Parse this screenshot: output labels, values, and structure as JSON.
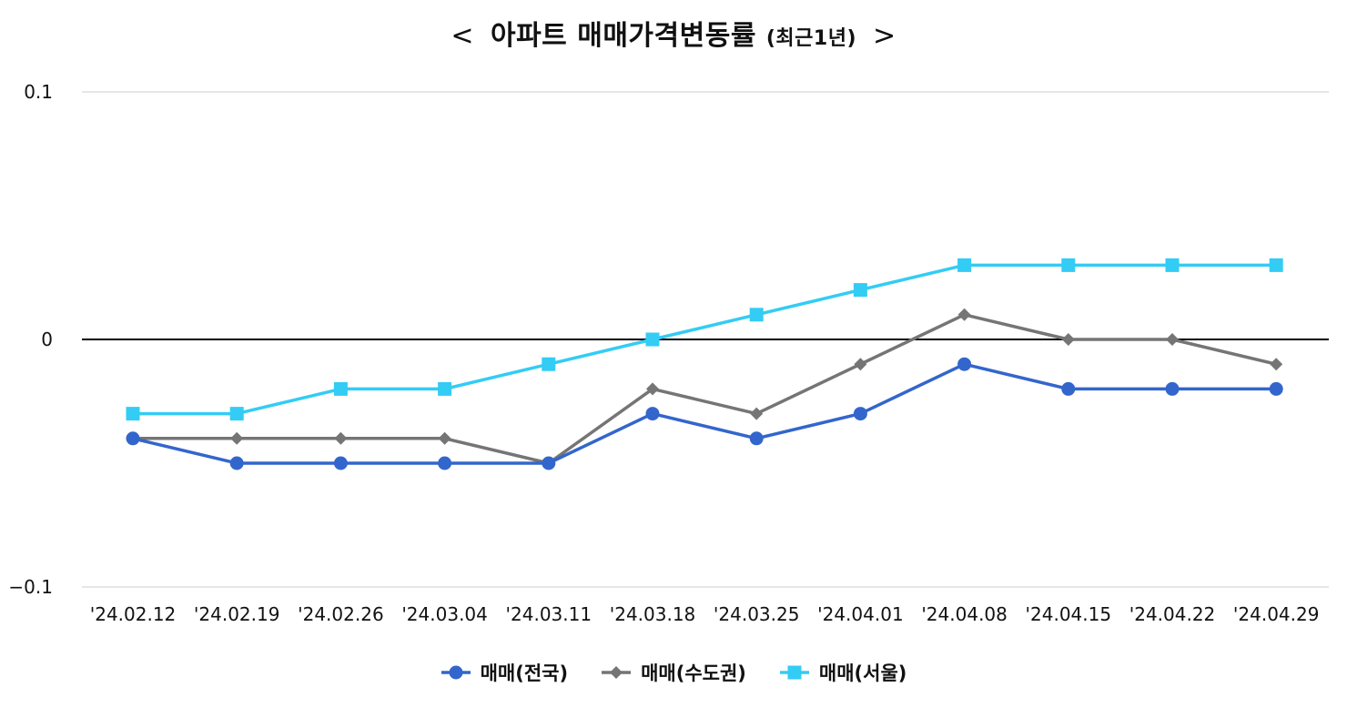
{
  "title": {
    "left_arrow": "<",
    "main": "아파트 매매가격변동률",
    "sub": "(최근1년)",
    "right_arrow": ">"
  },
  "chart_data": {
    "type": "line",
    "title": "아파트 매매가격변동률 (최근1년)",
    "xlabel": "",
    "ylabel": "",
    "categories": [
      "'24.02.12",
      "'24.02.19",
      "'24.02.26",
      "'24.03.04",
      "'24.03.11",
      "'24.03.18",
      "'24.03.25",
      "'24.04.01",
      "'24.04.08",
      "'24.04.15",
      "'24.04.22",
      "'24.04.29"
    ],
    "ylim": [
      -0.1,
      0.1
    ],
    "yticks": [
      0.1,
      0,
      -0.1
    ],
    "ytick_labels": [
      "0.1",
      "0",
      "−0.1"
    ],
    "grid": true,
    "legend_position": "bottom",
    "series": [
      {
        "name": "매매(전국)",
        "color": "#3366cc",
        "marker": "circle",
        "values": [
          -0.04,
          -0.05,
          -0.05,
          -0.05,
          -0.05,
          -0.03,
          -0.04,
          -0.03,
          -0.01,
          -0.02,
          -0.02,
          -0.02
        ]
      },
      {
        "name": "매매(수도권)",
        "color": "#757575",
        "marker": "diamond",
        "values": [
          -0.04,
          -0.04,
          -0.04,
          -0.04,
          -0.05,
          -0.02,
          -0.03,
          -0.01,
          0.01,
          0.0,
          0.0,
          -0.01
        ]
      },
      {
        "name": "매매(서울)",
        "color": "#33ccf5",
        "marker": "square",
        "values": [
          -0.03,
          -0.03,
          -0.02,
          -0.02,
          -0.01,
          0.0,
          0.01,
          0.02,
          0.03,
          0.03,
          0.03,
          0.03
        ]
      }
    ]
  }
}
